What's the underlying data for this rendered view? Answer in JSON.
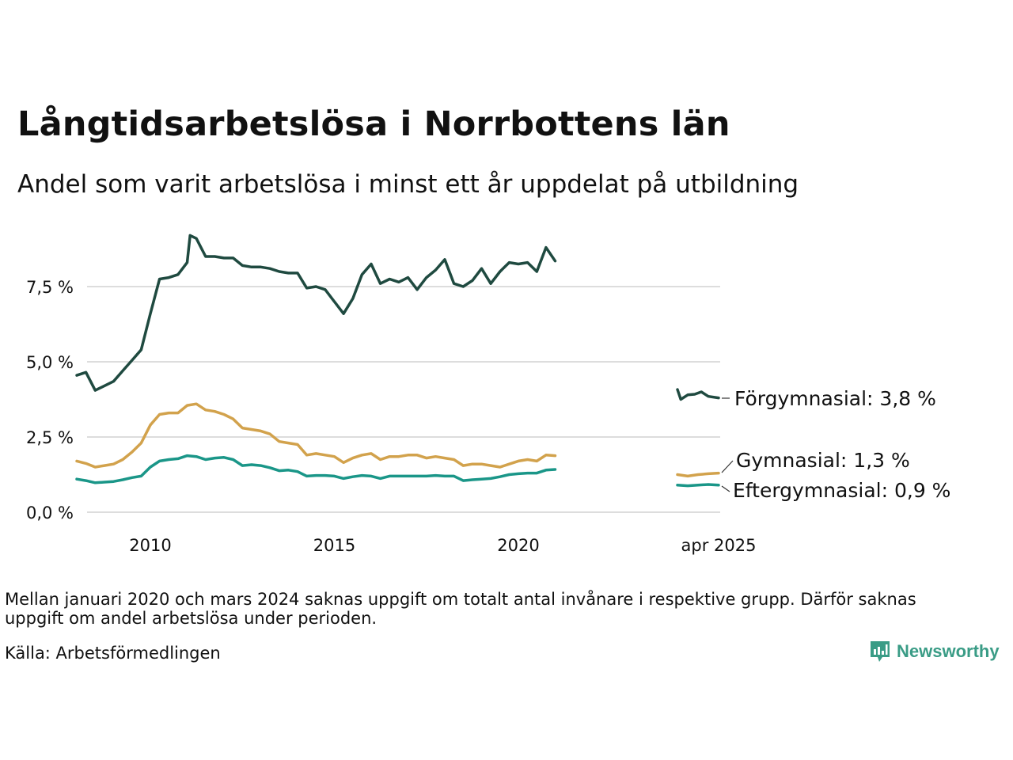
{
  "header": {
    "title": "Långtidsarbetslösa i Norrbottens län",
    "subtitle": "Andel som varit arbetslösa i minst ett år uppdelat på utbildning"
  },
  "footer": {
    "note": "Mellan januari 2020 och mars 2024 saknas uppgift om totalt antal invånare i respektive grupp. Därför saknas uppgift om andel arbetslösa under perioden.",
    "source": "Källa: Arbetsförmedlingen",
    "brand": "Newsworthy",
    "brand_color": "#3a9c86"
  },
  "chart_data": {
    "type": "line",
    "title": "Långtidsarbetslösa i Norrbottens län",
    "subtitle": "Andel som varit arbetslösa i minst ett år uppdelat på utbildning",
    "ylim": [
      0,
      9.5
    ],
    "y_ticks": [
      0,
      2.5,
      5.0,
      7.5
    ],
    "y_tick_labels": [
      "0,0 %",
      "2,5 %",
      "5,0 %",
      "7,5 %"
    ],
    "x_ticks": [
      {
        "x": 2010.0,
        "label": "2010"
      },
      {
        "x": 2015.0,
        "label": "2015"
      },
      {
        "x": 2020.0,
        "label": "2020"
      },
      {
        "x": "2025-04",
        "label": "apr 2025"
      }
    ],
    "grid": "horizontal",
    "legend": "end-of-line labels",
    "series": [
      {
        "name": "Förgymnasial",
        "label": "Förgymnasial: 3,8 %",
        "color": "#1f4a40",
        "values_before_gap": [
          [
            2008.0,
            4.55
          ],
          [
            2008.25,
            4.65
          ],
          [
            2008.5,
            4.05
          ],
          [
            2008.75,
            4.2
          ],
          [
            2009.0,
            4.35
          ],
          [
            2009.25,
            4.7
          ],
          [
            2009.5,
            5.05
          ],
          [
            2009.75,
            5.4
          ],
          [
            2010.0,
            6.6
          ],
          [
            2010.25,
            7.75
          ],
          [
            2010.5,
            7.8
          ],
          [
            2010.75,
            7.9
          ],
          [
            2011.0,
            8.3
          ],
          [
            2011.08,
            9.2
          ],
          [
            2011.25,
            9.1
          ],
          [
            2011.5,
            8.5
          ],
          [
            2011.75,
            8.5
          ],
          [
            2012.0,
            8.45
          ],
          [
            2012.25,
            8.45
          ],
          [
            2012.5,
            8.2
          ],
          [
            2012.75,
            8.15
          ],
          [
            2013.0,
            8.15
          ],
          [
            2013.25,
            8.1
          ],
          [
            2013.5,
            8.0
          ],
          [
            2013.75,
            7.95
          ],
          [
            2014.0,
            7.95
          ],
          [
            2014.25,
            7.45
          ],
          [
            2014.5,
            7.5
          ],
          [
            2014.75,
            7.4
          ],
          [
            2015.0,
            7.0
          ],
          [
            2015.25,
            6.6
          ],
          [
            2015.5,
            7.1
          ],
          [
            2015.75,
            7.9
          ],
          [
            2016.0,
            8.25
          ],
          [
            2016.25,
            7.6
          ],
          [
            2016.5,
            7.75
          ],
          [
            2016.75,
            7.65
          ],
          [
            2017.0,
            7.8
          ],
          [
            2017.25,
            7.4
          ],
          [
            2017.5,
            7.8
          ],
          [
            2017.75,
            8.05
          ],
          [
            2018.0,
            8.4
          ],
          [
            2018.25,
            7.6
          ],
          [
            2018.5,
            7.5
          ],
          [
            2018.75,
            7.7
          ],
          [
            2019.0,
            8.1
          ],
          [
            2019.25,
            7.6
          ],
          [
            2019.5,
            8.0
          ],
          [
            2019.75,
            8.3
          ],
          [
            2020.0,
            8.25
          ],
          [
            2020.25,
            8.3
          ],
          [
            2020.5,
            8.0
          ],
          [
            2020.75,
            8.8
          ],
          [
            2021.0,
            8.35
          ]
        ],
        "values_after_gap": [
          [
            2024.25,
            4.08
          ],
          [
            2024.33,
            3.75
          ],
          [
            2024.5,
            3.9
          ],
          [
            2024.67,
            3.92
          ],
          [
            2024.83,
            4.0
          ],
          [
            2025.0,
            3.85
          ],
          [
            2025.25,
            3.8
          ]
        ]
      },
      {
        "name": "Gymnasial",
        "label": "Gymnasial: 1,3 %",
        "color": "#d2a24c",
        "values_before_gap": [
          [
            2008.0,
            1.7
          ],
          [
            2008.25,
            1.62
          ],
          [
            2008.5,
            1.5
          ],
          [
            2008.75,
            1.55
          ],
          [
            2009.0,
            1.6
          ],
          [
            2009.25,
            1.75
          ],
          [
            2009.5,
            2.0
          ],
          [
            2009.75,
            2.3
          ],
          [
            2010.0,
            2.9
          ],
          [
            2010.25,
            3.25
          ],
          [
            2010.5,
            3.3
          ],
          [
            2010.75,
            3.3
          ],
          [
            2011.0,
            3.55
          ],
          [
            2011.25,
            3.6
          ],
          [
            2011.5,
            3.4
          ],
          [
            2011.75,
            3.35
          ],
          [
            2012.0,
            3.25
          ],
          [
            2012.25,
            3.1
          ],
          [
            2012.5,
            2.8
          ],
          [
            2012.75,
            2.75
          ],
          [
            2013.0,
            2.7
          ],
          [
            2013.25,
            2.6
          ],
          [
            2013.5,
            2.35
          ],
          [
            2013.75,
            2.3
          ],
          [
            2014.0,
            2.25
          ],
          [
            2014.25,
            1.9
          ],
          [
            2014.5,
            1.95
          ],
          [
            2014.75,
            1.9
          ],
          [
            2015.0,
            1.85
          ],
          [
            2015.25,
            1.65
          ],
          [
            2015.5,
            1.8
          ],
          [
            2015.75,
            1.9
          ],
          [
            2016.0,
            1.95
          ],
          [
            2016.25,
            1.75
          ],
          [
            2016.5,
            1.85
          ],
          [
            2016.75,
            1.85
          ],
          [
            2017.0,
            1.9
          ],
          [
            2017.25,
            1.9
          ],
          [
            2017.5,
            1.8
          ],
          [
            2017.75,
            1.85
          ],
          [
            2018.0,
            1.8
          ],
          [
            2018.25,
            1.75
          ],
          [
            2018.5,
            1.55
          ],
          [
            2018.75,
            1.6
          ],
          [
            2019.0,
            1.6
          ],
          [
            2019.25,
            1.55
          ],
          [
            2019.5,
            1.5
          ],
          [
            2019.75,
            1.6
          ],
          [
            2020.0,
            1.7
          ],
          [
            2020.25,
            1.75
          ],
          [
            2020.5,
            1.7
          ],
          [
            2020.75,
            1.9
          ],
          [
            2021.0,
            1.88
          ]
        ],
        "values_after_gap": [
          [
            2024.25,
            1.25
          ],
          [
            2024.5,
            1.2
          ],
          [
            2024.75,
            1.25
          ],
          [
            2025.0,
            1.28
          ],
          [
            2025.25,
            1.3
          ]
        ]
      },
      {
        "name": "Eftergymnasial",
        "label": "Eftergymnasial: 0,9 %",
        "color": "#1a9688",
        "values_before_gap": [
          [
            2008.0,
            1.1
          ],
          [
            2008.25,
            1.05
          ],
          [
            2008.5,
            0.98
          ],
          [
            2008.75,
            1.0
          ],
          [
            2009.0,
            1.02
          ],
          [
            2009.25,
            1.08
          ],
          [
            2009.5,
            1.15
          ],
          [
            2009.75,
            1.2
          ],
          [
            2010.0,
            1.5
          ],
          [
            2010.25,
            1.7
          ],
          [
            2010.5,
            1.75
          ],
          [
            2010.75,
            1.78
          ],
          [
            2011.0,
            1.88
          ],
          [
            2011.25,
            1.85
          ],
          [
            2011.5,
            1.75
          ],
          [
            2011.75,
            1.8
          ],
          [
            2012.0,
            1.82
          ],
          [
            2012.25,
            1.75
          ],
          [
            2012.5,
            1.55
          ],
          [
            2012.75,
            1.58
          ],
          [
            2013.0,
            1.55
          ],
          [
            2013.25,
            1.48
          ],
          [
            2013.5,
            1.38
          ],
          [
            2013.75,
            1.4
          ],
          [
            2014.0,
            1.35
          ],
          [
            2014.25,
            1.2
          ],
          [
            2014.5,
            1.22
          ],
          [
            2014.75,
            1.22
          ],
          [
            2015.0,
            1.2
          ],
          [
            2015.25,
            1.12
          ],
          [
            2015.5,
            1.18
          ],
          [
            2015.75,
            1.22
          ],
          [
            2016.0,
            1.2
          ],
          [
            2016.25,
            1.12
          ],
          [
            2016.5,
            1.2
          ],
          [
            2016.75,
            1.2
          ],
          [
            2017.0,
            1.2
          ],
          [
            2017.25,
            1.2
          ],
          [
            2017.5,
            1.2
          ],
          [
            2017.75,
            1.22
          ],
          [
            2018.0,
            1.2
          ],
          [
            2018.25,
            1.2
          ],
          [
            2018.5,
            1.05
          ],
          [
            2018.75,
            1.08
          ],
          [
            2019.0,
            1.1
          ],
          [
            2019.25,
            1.12
          ],
          [
            2019.5,
            1.18
          ],
          [
            2019.75,
            1.25
          ],
          [
            2020.0,
            1.28
          ],
          [
            2020.25,
            1.3
          ],
          [
            2020.5,
            1.3
          ],
          [
            2020.75,
            1.4
          ],
          [
            2021.0,
            1.42
          ]
        ],
        "values_after_gap": [
          [
            2024.25,
            0.9
          ],
          [
            2024.5,
            0.88
          ],
          [
            2024.75,
            0.9
          ],
          [
            2025.0,
            0.92
          ],
          [
            2025.25,
            0.9
          ]
        ]
      }
    ]
  }
}
